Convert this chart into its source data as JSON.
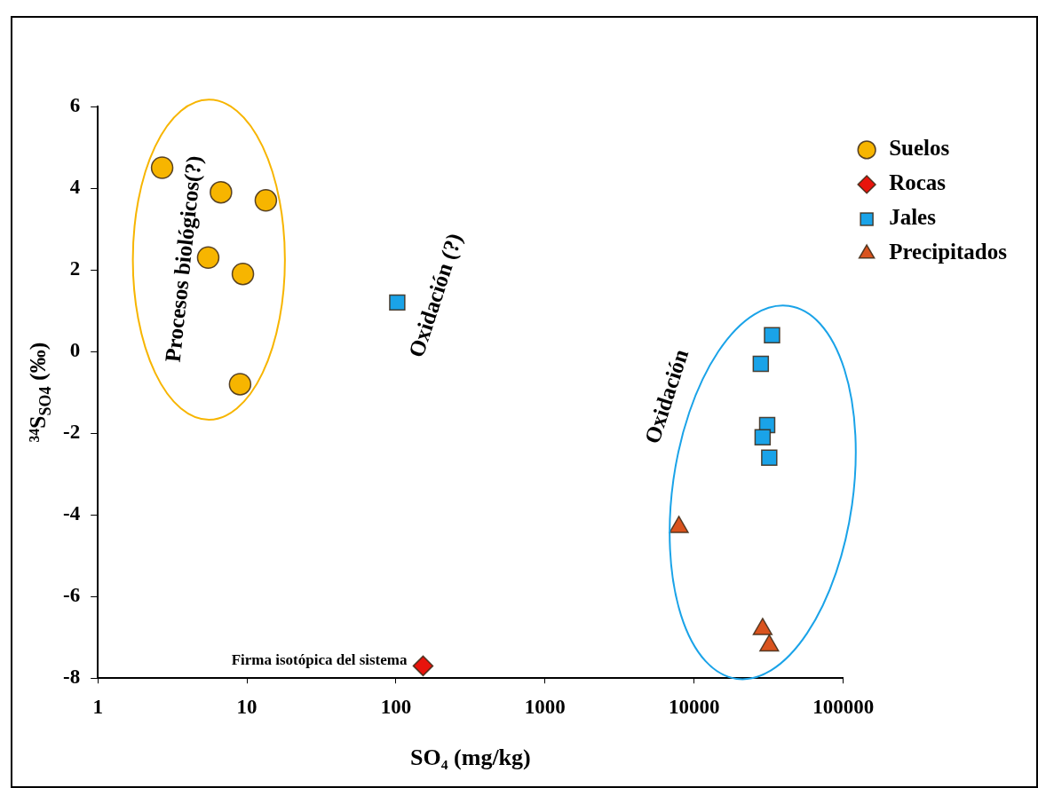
{
  "chart_data": {
    "type": "scatter",
    "xlabel": "SO₄ (mg/kg)",
    "ylabel": "³⁴S$_{SO4}$ (‰)",
    "log": "x",
    "xlim": [
      1,
      100000
    ],
    "xticks": [
      1,
      10,
      100,
      1000,
      10000,
      100000
    ],
    "ylim": [
      -8,
      6
    ],
    "yticks": [
      -8,
      -6,
      -4,
      -2,
      0,
      2,
      4,
      6
    ],
    "grid": false,
    "legend": "top right",
    "series": [
      {
        "name": "Suelos",
        "color": "#f7b500",
        "marker": "circle",
        "x": [
          2.7,
          6.7,
          13.4,
          5.5,
          9.4,
          9.0
        ],
        "values": [
          4.5,
          3.9,
          3.7,
          2.3,
          1.9,
          -0.8
        ]
      },
      {
        "name": "Rocas",
        "color": "#e8140c",
        "marker": "diamond",
        "x": [
          152
        ],
        "values": [
          -7.7
        ]
      },
      {
        "name": "Jales",
        "color": "#1aa3e8",
        "marker": "square",
        "x": [
          102,
          33300,
          28000,
          30900,
          28800,
          31900
        ],
        "values": [
          1.2,
          0.4,
          -0.3,
          -1.8,
          -2.1,
          -2.6
        ]
      },
      {
        "name": "Precipitados",
        "color": "#d9531e",
        "marker": "triangle",
        "x": [
          7900,
          28800,
          31900
        ],
        "values": [
          -4.3,
          -6.8,
          -7.2
        ]
      }
    ],
    "annotations": [
      "Procesos biológicos(?)",
      "Oxidación (?)",
      "Oxidación",
      {
        "text": "Firma isotópica del sistema",
        "x": 152,
        "y": -7.7
      }
    ]
  }
}
